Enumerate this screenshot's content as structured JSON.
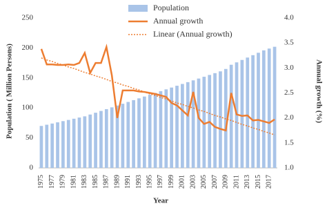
{
  "chart_data": {
    "type": "bar-line",
    "categories": [
      "1975",
      null,
      "1977",
      null,
      "1979",
      null,
      "1981",
      null,
      "1983",
      null,
      "1985",
      null,
      "1987",
      null,
      "1989",
      null,
      "1991",
      null,
      "1993",
      null,
      "1995",
      null,
      "1997",
      null,
      "1999",
      null,
      "2001",
      null,
      "2003",
      null,
      "2005",
      null,
      "2007",
      null,
      "2009",
      null,
      "2011",
      null,
      "2013",
      null,
      "2015",
      null,
      "2017",
      null
    ],
    "series": [
      {
        "name": "Population",
        "kind": "bar",
        "color": "#a9c4e8",
        "axis": "y",
        "values": [
          70,
          72,
          74,
          76,
          78,
          80,
          82,
          84,
          86,
          89,
          92,
          95,
          98,
          101,
          104,
          107,
          110,
          113,
          116,
          119,
          122,
          125,
          128,
          131,
          134,
          137,
          140,
          143,
          146,
          149,
          152,
          155,
          158,
          161,
          165,
          172,
          176,
          180,
          184,
          188,
          192,
          196,
          199,
          202
        ]
      },
      {
        "name": "Annual growth",
        "kind": "line",
        "color": "#ed7d31",
        "axis": "y2",
        "values": [
          3.38,
          3.07,
          3.07,
          3.06,
          3.06,
          3.07,
          3.06,
          3.1,
          3.3,
          2.9,
          3.1,
          3.1,
          3.42,
          2.85,
          2.0,
          2.55,
          2.55,
          2.55,
          2.53,
          2.52,
          2.5,
          2.48,
          2.45,
          2.42,
          2.3,
          2.25,
          2.15,
          2.05,
          2.52,
          2.0,
          1.88,
          1.92,
          1.82,
          1.78,
          1.75,
          2.5,
          2.07,
          2.04,
          2.05,
          1.95,
          1.96,
          1.93,
          1.9,
          1.97
        ]
      },
      {
        "name": "Linear (Annual growth)",
        "kind": "trend",
        "color": "#ed7d31",
        "axis": "y2",
        "values": [
          3.2,
          3.16,
          3.13,
          3.09,
          3.06,
          3.02,
          2.99,
          2.95,
          2.91,
          2.88,
          2.84,
          2.81,
          2.77,
          2.73,
          2.7,
          2.66,
          2.63,
          2.59,
          2.56,
          2.52,
          2.48,
          2.45,
          2.41,
          2.38,
          2.34,
          2.3,
          2.27,
          2.23,
          2.2,
          2.16,
          2.13,
          2.09,
          2.05,
          2.02,
          1.98,
          1.95,
          1.91,
          1.87,
          1.84,
          1.8,
          1.77,
          1.73,
          1.7,
          1.66
        ]
      }
    ],
    "ylim": [
      0,
      250
    ],
    "yticks": [
      0,
      50,
      100,
      150,
      200,
      250
    ],
    "y2lim": [
      1,
      4
    ],
    "y2ticks": [
      {
        "value": 1,
        "label": "1.0"
      },
      {
        "value": 1.5,
        "label": "1.5"
      },
      {
        "value": 2,
        "label": "2.0"
      },
      {
        "value": 2.5,
        "label": "2.5"
      },
      {
        "value": 3,
        "label": "3.0"
      },
      {
        "value": 3.5,
        "label": "3.5"
      },
      {
        "value": 4,
        "label": "4.0"
      }
    ],
    "xlabel": "Year",
    "ylabel": "Population ( Million Persons)",
    "y2label": "Annual growth (%)",
    "legend": "top"
  }
}
